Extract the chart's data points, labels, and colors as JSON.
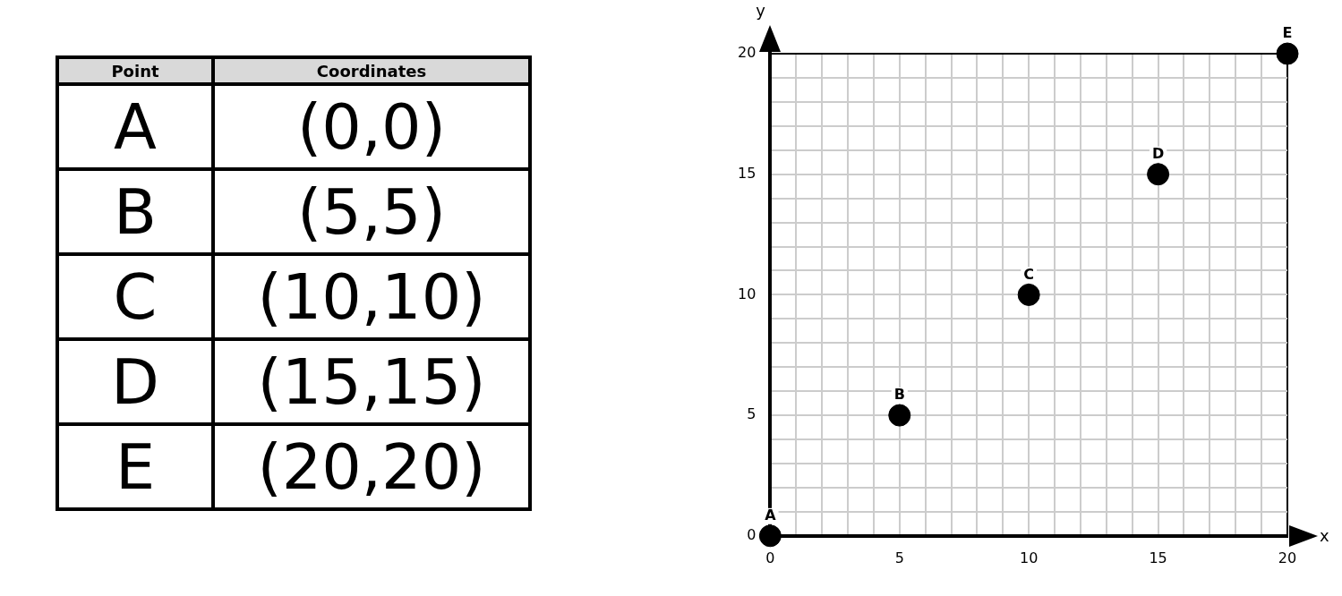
{
  "chart_data": [
    {
      "type": "other",
      "annotations": [
        "Point",
        "Coordinates",
        "A",
        "(0,0)",
        "B",
        "(5,5)",
        "C",
        "(10,10)",
        "D",
        "(15,15)",
        "E",
        "(20,20)"
      ]
    },
    {
      "type": "scatter",
      "xlabel": "x",
      "ylabel": "y",
      "x": [
        0,
        5,
        10,
        15,
        20
      ],
      "series": [
        {
          "color": "#000000",
          "values": [
            0,
            5,
            10,
            15,
            20
          ]
        }
      ],
      "xlim": [
        0,
        20
      ],
      "ylim": [
        0,
        20
      ],
      "xticks": [
        0,
        {
          "value": 1,
          "label": null
        },
        {
          "value": 2,
          "label": null
        },
        {
          "value": 3,
          "label": null
        },
        {
          "value": 4,
          "label": null
        },
        5,
        {
          "value": 6,
          "label": null
        },
        {
          "value": 7,
          "label": null
        },
        {
          "value": 8,
          "label": null
        },
        {
          "value": 9,
          "label": null
        },
        10,
        {
          "value": 11,
          "label": null
        },
        {
          "value": 12,
          "label": null
        },
        {
          "value": 13,
          "label": null
        },
        {
          "value": 14,
          "label": null
        },
        15,
        {
          "value": 16,
          "label": null
        },
        {
          "value": 17,
          "label": null
        },
        {
          "value": 18,
          "label": null
        },
        {
          "value": 19,
          "label": null
        },
        20
      ],
      "yticks": [
        0,
        {
          "value": 1,
          "label": null
        },
        {
          "value": 2,
          "label": null
        },
        {
          "value": 3,
          "label": null
        },
        {
          "value": 4,
          "label": null
        },
        5,
        {
          "value": 6,
          "label": null
        },
        {
          "value": 7,
          "label": null
        },
        {
          "value": 8,
          "label": null
        },
        {
          "value": 9,
          "label": null
        },
        10,
        {
          "value": 11,
          "label": null
        },
        {
          "value": 12,
          "label": null
        },
        {
          "value": 13,
          "label": null
        },
        {
          "value": 14,
          "label": null
        },
        15,
        {
          "value": 16,
          "label": null
        },
        {
          "value": 17,
          "label": null
        },
        {
          "value": 18,
          "label": null
        },
        {
          "value": 19,
          "label": null
        },
        20
      ],
      "grid": true,
      "marker": "circle",
      "annotations": [
        {
          "text": "A",
          "x": 0,
          "y": 0
        },
        {
          "text": "B",
          "x": 5,
          "y": 5
        },
        {
          "text": "C",
          "x": 10,
          "y": 10
        },
        {
          "text": "D",
          "x": 15,
          "y": 15
        },
        {
          "text": "E",
          "x": 20,
          "y": 20
        }
      ]
    }
  ]
}
